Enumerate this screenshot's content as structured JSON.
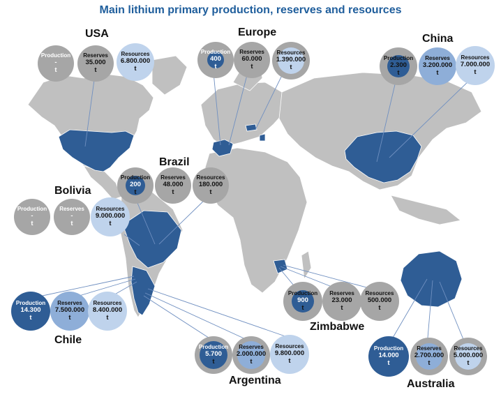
{
  "title": "Main lithium primary production, reserves and resources",
  "labels": {
    "production": "Production",
    "reserves": "Reserves",
    "resources": "Resources",
    "unit": "t"
  },
  "colors": {
    "land": "#c0c0c0",
    "highlight": "#2f5d95",
    "bubble_grey": "#a6a6a6",
    "bubble_light": "#bfd3ec",
    "bubble_mid": "#8eaed8",
    "bubble_dark": "#2f5d95",
    "title": "#1f5e9c",
    "leader": "#6f8fc0"
  },
  "chart_data": {
    "type": "table",
    "unit": "t",
    "columns": [
      "Production",
      "Reserves",
      "Resources"
    ],
    "countries": [
      {
        "name": "USA",
        "production": "-",
        "reserves": "35.000",
        "resources": "6.800.000"
      },
      {
        "name": "Europe",
        "production": "400",
        "reserves": "60.000",
        "resources": "1.390.000"
      },
      {
        "name": "China",
        "production": "2.300",
        "reserves": "3.200.000",
        "resources": "7.000.000"
      },
      {
        "name": "Brazil",
        "production": "200",
        "reserves": "48.000",
        "resources": "180.000"
      },
      {
        "name": "Bolivia",
        "production": "-",
        "reserves": "-",
        "resources": "9.000.000"
      },
      {
        "name": "Chile",
        "production": "14.300",
        "reserves": "7.500.000",
        "resources": "8.400.000"
      },
      {
        "name": "Argentina",
        "production": "5.700",
        "reserves": "2.000.000",
        "resources": "9.800.000"
      },
      {
        "name": "Zimbabwe",
        "production": "900",
        "reserves": "23.000",
        "resources": "500.000"
      },
      {
        "name": "Australia",
        "production": "14.000",
        "reserves": "2.700.000",
        "resources": "5.000.000"
      }
    ]
  }
}
